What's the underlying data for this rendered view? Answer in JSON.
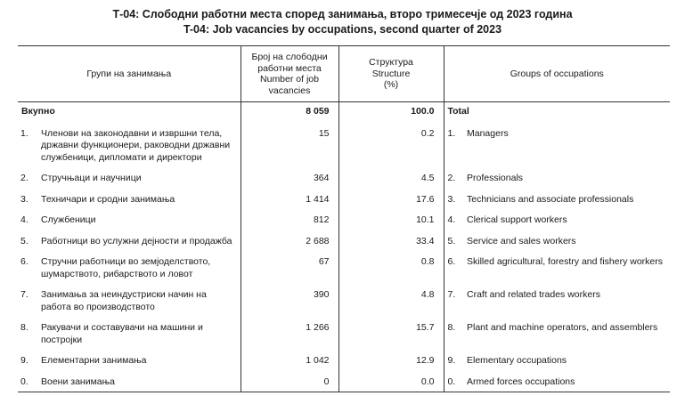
{
  "title_mk": "Т-04: Слободни работни места според занимања, второ тримесечје од 2023 година",
  "title_en": "T-04: Job vacancies by occupations, second quarter of 2023",
  "header": {
    "groups_mk": "Групи на занимања",
    "number_col": [
      "Број на слободни",
      "работни места",
      "Number of job",
      "vacancies"
    ],
    "structure_col": [
      "Структура",
      "Structure",
      "(%)"
    ],
    "groups_en": "Groups of occupations"
  },
  "total": {
    "label_mk": "Вкупно",
    "number": "8 059",
    "structure": "100.0",
    "label_en": "Total"
  },
  "rows": [
    {
      "code": "1.",
      "label_mk": "Членови на законодавни и извршни тела, државни функционери, раководни државни службеници, дипломати и директори",
      "number": "15",
      "structure": "0.2",
      "code_en": "1.",
      "label_en": "Managers"
    },
    {
      "code": "2.",
      "label_mk": "Стручњаци и научници",
      "number": "364",
      "structure": "4.5",
      "code_en": "2.",
      "label_en": "Professionals"
    },
    {
      "code": "3.",
      "label_mk": "Техничари и сродни занимања",
      "number": "1 414",
      "structure": "17.6",
      "code_en": "3.",
      "label_en": "Technicians and associate professionals"
    },
    {
      "code": "4.",
      "label_mk": "Службеници",
      "number": "812",
      "structure": "10.1",
      "code_en": "4.",
      "label_en": "Clerical support workers"
    },
    {
      "code": "5.",
      "label_mk": "Работници во услужни дејности и продажба",
      "number": "2 688",
      "structure": "33.4",
      "code_en": "5.",
      "label_en": "Service and sales workers"
    },
    {
      "code": "6.",
      "label_mk": "Стручни работници во земјоделството, шумарството, рибарството и ловот",
      "number": "67",
      "structure": "0.8",
      "code_en": "6.",
      "label_en": "Skilled agricultural, forestry and fishery workers"
    },
    {
      "code": "7.",
      "label_mk": "Занимања за неиндустриски начин на работа во производството",
      "number": "390",
      "structure": "4.8",
      "code_en": "7.",
      "label_en": "Craft and related trades workers"
    },
    {
      "code": "8.",
      "label_mk": "Ракувачи и составувачи на машини и постројки",
      "number": "1 266",
      "structure": "15.7",
      "code_en": "8.",
      "label_en": "Plant and machine operators, and assemblers"
    },
    {
      "code": "9.",
      "label_mk": "Елементарни занимања",
      "number": "1 042",
      "structure": "12.9",
      "code_en": "9.",
      "label_en": "Elementary occupations"
    },
    {
      "code": "0.",
      "label_mk": "Воени занимања",
      "number": "0",
      "structure": "0.0",
      "code_en": "0.",
      "label_en": "Armed forces occupations"
    }
  ]
}
